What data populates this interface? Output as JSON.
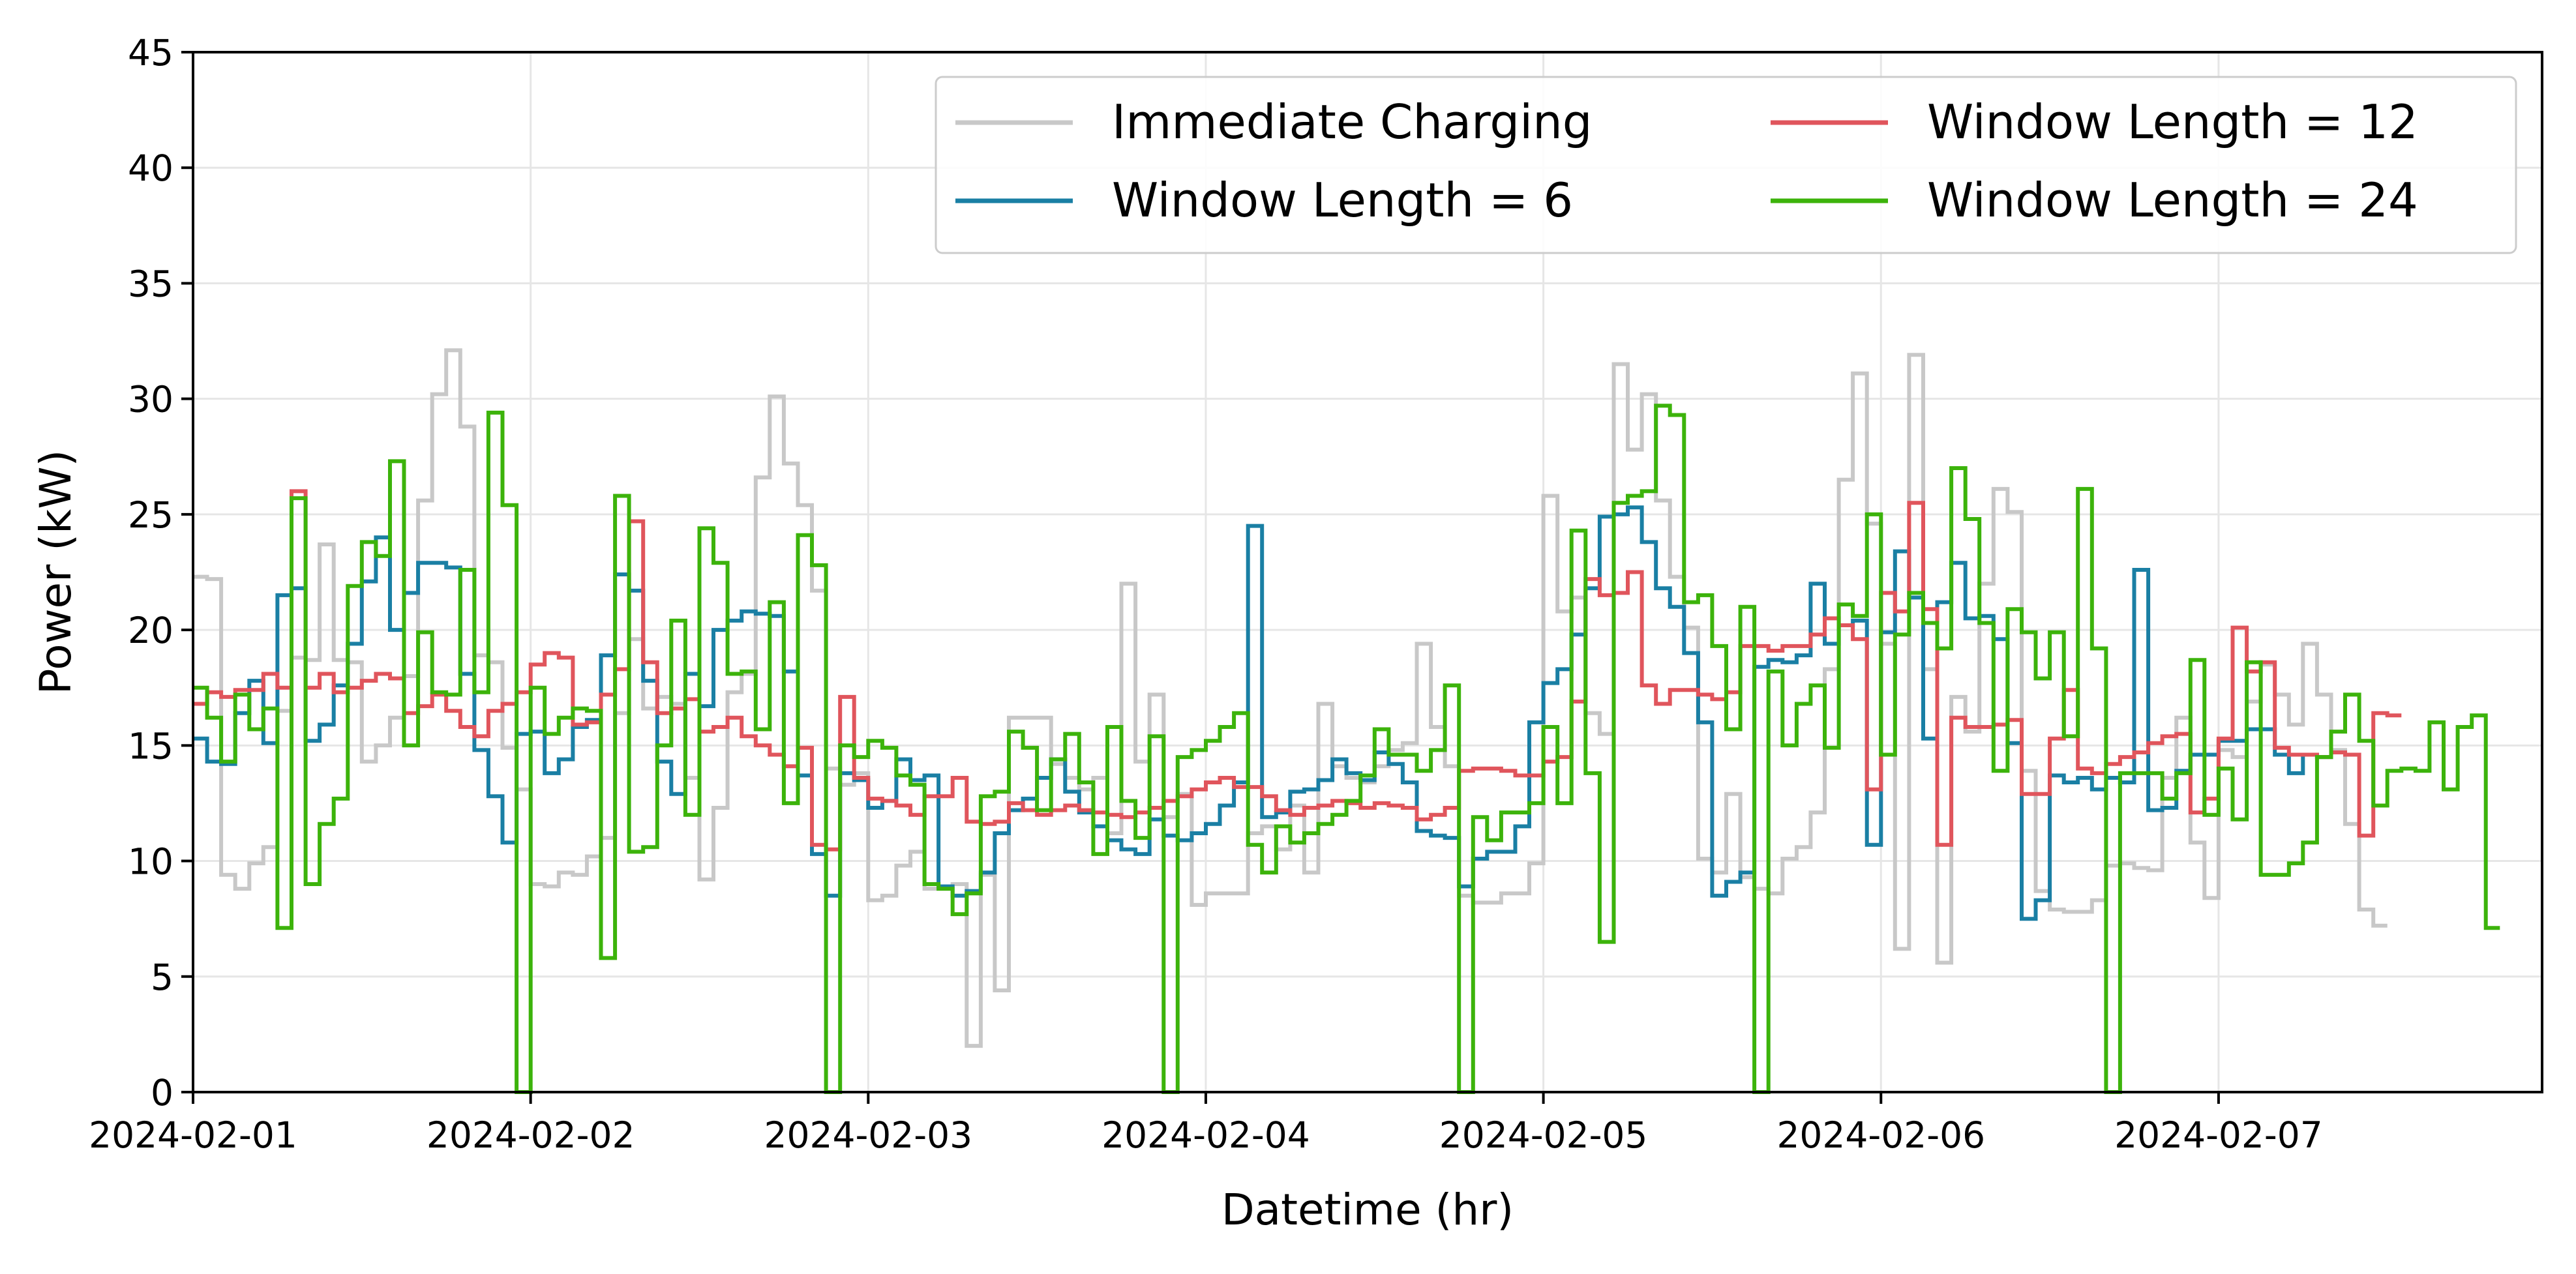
{
  "chart_data": {
    "type": "line",
    "title": "",
    "xlabel": "Datetime (hr)",
    "ylabel": "Power (kW)",
    "xlim": [
      "2024-02-01 00:00",
      "2024-02-07 23:00"
    ],
    "ylim": [
      0,
      45
    ],
    "yticks": [
      0,
      5,
      10,
      15,
      20,
      25,
      30,
      35,
      40,
      45
    ],
    "xtick_labels": [
      "2024-02-01",
      "2024-02-02",
      "2024-02-03",
      "2024-02-04",
      "2024-02-05",
      "2024-02-06",
      "2024-02-07"
    ],
    "xtick_dates": [
      "2024-02-01 00:00",
      "2024-02-02 00:00",
      "2024-02-03 00:00",
      "2024-02-04 00:00",
      "2024-02-05 00:00",
      "2024-02-06 00:00",
      "2024-02-07 00:00"
    ],
    "grid": true,
    "legend_position": "top-right",
    "legend_columns": 2,
    "step": "post",
    "sample_interval": "1h",
    "x_start": "2024-02-01 00:00",
    "series": [
      {
        "name": "Immediate Charging",
        "color": "#c8c8c8",
        "values": [
          22.3,
          22.2,
          9.4,
          8.8,
          9.9,
          10.6,
          16.5,
          18.8,
          18.7,
          23.7,
          18.7,
          18.6,
          14.3,
          15.0,
          16.2,
          18.0,
          25.6,
          30.2,
          32.1,
          28.8,
          18.9,
          18.6,
          14.9,
          13.1,
          9.0,
          8.9,
          9.5,
          9.4,
          10.2,
          11.0,
          16.4,
          19.6,
          16.6,
          17.1,
          16.8,
          13.6,
          9.2,
          12.3,
          17.3,
          18.1,
          26.6,
          30.1,
          27.2,
          25.4,
          21.7,
          14.0,
          13.3,
          13.8,
          8.3,
          8.5,
          9.8,
          10.4,
          8.8,
          8.8,
          9.0,
          2.0,
          9.4,
          4.4,
          16.2,
          16.2,
          16.2,
          14.2,
          13.6,
          13.1,
          13.6,
          11.2,
          22.0,
          14.3,
          17.2,
          11.9,
          12.9,
          8.1,
          8.6,
          8.6,
          8.6,
          11.2,
          11.5,
          10.5,
          12.4,
          9.5,
          16.8,
          14.1,
          13.6,
          13.4,
          14.1,
          14.8,
          15.1,
          19.4,
          15.8,
          14.1,
          8.5,
          8.2,
          8.2,
          8.6,
          8.6,
          9.9,
          25.8,
          20.8,
          21.4,
          16.4,
          15.5,
          31.5,
          27.8,
          30.2,
          25.6,
          22.3,
          20.1,
          10.1,
          9.5,
          12.9,
          9.3,
          8.8,
          8.6,
          10.1,
          10.6,
          12.1,
          18.3,
          26.5,
          31.1,
          24.6,
          19.4,
          6.2,
          31.9,
          18.3,
          5.6,
          17.1,
          15.6,
          22.0,
          26.1,
          25.1,
          13.9,
          8.7,
          7.9,
          7.8,
          7.8,
          8.3,
          9.8,
          9.9,
          9.7,
          9.6,
          13.6,
          16.2,
          10.8,
          8.4,
          14.8,
          14.5,
          16.9,
          18.5,
          17.2,
          15.9,
          19.4,
          17.2,
          14.8,
          11.6,
          7.9,
          7.2
        ]
      },
      {
        "name": "Window Length = 6",
        "color": "#1a7fa4",
        "values": [
          15.3,
          14.3,
          14.2,
          16.4,
          17.8,
          15.1,
          21.5,
          21.8,
          15.2,
          15.9,
          17.6,
          19.4,
          22.1,
          24.0,
          20.0,
          21.6,
          22.9,
          22.9,
          22.7,
          18.1,
          14.8,
          12.8,
          10.8,
          15.5,
          15.6,
          13.8,
          14.4,
          15.8,
          16.1,
          18.9,
          22.4,
          21.7,
          17.8,
          14.3,
          12.9,
          18.1,
          16.7,
          20.0,
          20.4,
          20.8,
          20.7,
          20.6,
          18.2,
          13.7,
          10.3,
          8.5,
          13.8,
          13.5,
          12.3,
          12.6,
          14.4,
          13.5,
          13.7,
          8.9,
          8.5,
          8.7,
          9.5,
          11.2,
          12.2,
          12.7,
          13.6,
          14.4,
          13.0,
          12.1,
          11.5,
          10.9,
          10.5,
          10.3,
          11.8,
          11.1,
          10.9,
          11.2,
          11.6,
          12.4,
          13.4,
          24.5,
          11.9,
          12.1,
          13.0,
          13.1,
          13.5,
          14.4,
          13.8,
          13.5,
          14.7,
          14.2,
          13.4,
          11.3,
          11.1,
          11.0,
          8.9,
          10.1,
          10.4,
          10.4,
          11.5,
          16.0,
          17.7,
          18.3,
          19.8,
          21.8,
          24.9,
          25.0,
          25.3,
          23.8,
          21.8,
          21.0,
          19.0,
          16.0,
          8.5,
          9.1,
          9.5,
          18.4,
          18.7,
          18.6,
          18.9,
          22.0,
          19.4,
          20.2,
          20.4,
          10.7,
          19.9,
          23.4,
          21.4,
          15.3,
          21.2,
          22.9,
          20.5,
          20.6,
          19.6,
          15.1,
          7.5,
          8.3,
          13.7,
          13.4,
          13.6,
          13.1,
          13.6,
          13.4,
          22.6,
          12.2,
          12.3,
          13.9,
          14.6,
          14.6,
          15.2,
          15.2,
          15.7,
          15.7,
          14.6,
          13.8,
          14.6,
          14.5,
          14.7,
          14.6
        ]
      },
      {
        "name": "Window Length = 12",
        "color": "#e0555c",
        "values": [
          16.8,
          17.3,
          17.1,
          17.4,
          17.4,
          18.1,
          17.5,
          26.0,
          17.5,
          18.1,
          17.3,
          17.5,
          17.8,
          18.1,
          17.9,
          16.4,
          16.7,
          17.2,
          16.5,
          15.8,
          15.4,
          16.5,
          16.8,
          17.3,
          18.5,
          19.0,
          18.8,
          15.9,
          16.0,
          17.2,
          18.3,
          24.7,
          18.6,
          16.4,
          16.6,
          17.0,
          15.6,
          15.8,
          16.2,
          15.4,
          15.0,
          14.6,
          14.1,
          14.9,
          10.7,
          10.5,
          17.1,
          13.6,
          12.7,
          12.6,
          12.4,
          12.0,
          12.8,
          12.8,
          13.6,
          11.7,
          11.6,
          11.7,
          12.5,
          12.2,
          12.0,
          12.2,
          12.4,
          12.2,
          12.1,
          12.0,
          11.9,
          12.1,
          12.3,
          12.6,
          12.8,
          13.1,
          13.4,
          13.6,
          13.2,
          13.2,
          12.8,
          12.2,
          12.0,
          12.3,
          12.4,
          12.6,
          12.5,
          12.3,
          12.5,
          12.4,
          12.3,
          11.8,
          12.0,
          12.3,
          13.9,
          14.0,
          14.0,
          13.9,
          13.7,
          13.7,
          14.3,
          14.5,
          16.9,
          22.2,
          21.5,
          21.6,
          22.5,
          17.6,
          16.8,
          17.4,
          17.4,
          17.2,
          17.0,
          17.3,
          19.3,
          19.3,
          19.1,
          19.3,
          19.3,
          19.8,
          20.5,
          20.2,
          19.6,
          13.1,
          21.6,
          20.8,
          25.5,
          20.9,
          10.7,
          16.2,
          15.8,
          15.8,
          15.9,
          16.1,
          12.9,
          12.9,
          15.3,
          17.4,
          14.0,
          13.8,
          14.2,
          14.5,
          14.7,
          15.1,
          15.4,
          15.5,
          12.1,
          12.7,
          15.3,
          20.1,
          18.2,
          18.6,
          14.9,
          14.6,
          14.6,
          14.5,
          14.7,
          14.6,
          11.1,
          16.4,
          16.3
        ]
      },
      {
        "name": "Window Length = 24",
        "color": "#3cb30b",
        "values": [
          17.5,
          16.2,
          14.3,
          17.2,
          15.7,
          16.6,
          7.1,
          25.7,
          9.0,
          11.6,
          12.7,
          21.9,
          23.8,
          23.2,
          27.3,
          15.0,
          19.9,
          17.3,
          17.2,
          22.6,
          17.3,
          29.4,
          25.4,
          0.0,
          17.5,
          15.5,
          16.2,
          16.6,
          16.5,
          5.8,
          25.8,
          10.4,
          10.6,
          15.0,
          20.4,
          12.0,
          24.4,
          22.9,
          18.1,
          18.2,
          15.7,
          21.2,
          12.5,
          24.1,
          22.8,
          0.0,
          15.0,
          14.5,
          15.2,
          14.9,
          13.7,
          13.3,
          9.0,
          8.8,
          7.7,
          8.6,
          12.8,
          13.0,
          15.6,
          14.9,
          12.2,
          14.4,
          15.5,
          13.4,
          10.3,
          15.8,
          12.6,
          11.0,
          15.4,
          0.0,
          14.5,
          14.8,
          15.2,
          15.8,
          16.4,
          10.7,
          9.5,
          11.5,
          10.8,
          11.2,
          11.6,
          12.0,
          12.6,
          13.7,
          15.7,
          14.6,
          14.6,
          13.9,
          14.8,
          17.6,
          0.0,
          11.9,
          10.9,
          12.1,
          12.1,
          12.5,
          15.8,
          12.5,
          24.3,
          13.8,
          6.5,
          25.5,
          25.8,
          26.0,
          29.7,
          29.3,
          21.2,
          21.5,
          19.3,
          15.7,
          21.0,
          0.0,
          18.2,
          15.0,
          16.8,
          17.6,
          14.9,
          21.1,
          20.6,
          25.0,
          14.6,
          19.8,
          21.6,
          20.3,
          19.2,
          27.0,
          24.8,
          20.3,
          13.9,
          20.9,
          19.9,
          17.9,
          19.9,
          15.4,
          26.1,
          19.2,
          0.0,
          13.8,
          13.8,
          13.8,
          12.7,
          13.8,
          18.7,
          12.0,
          14.0,
          11.8,
          18.6,
          9.4,
          9.4,
          9.9,
          10.8,
          14.5,
          15.6,
          17.2,
          15.2,
          12.4,
          13.9,
          14.0,
          13.9,
          16.0,
          13.1,
          15.8,
          16.3,
          7.1
        ]
      }
    ]
  }
}
